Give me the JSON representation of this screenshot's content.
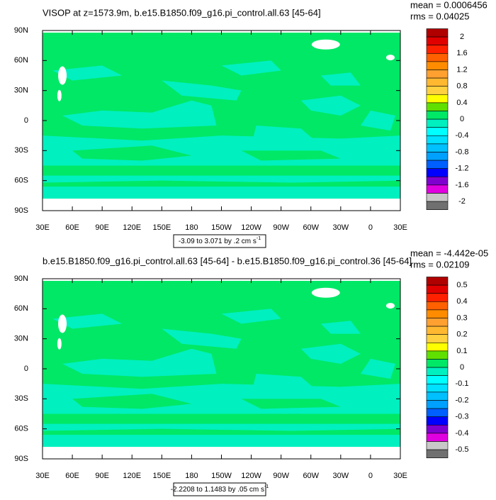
{
  "panels": [
    {
      "title": "VISOP at z=1573.9m, b.e15.B1850.f09_g16.pi_control.all.63 [45-64]",
      "mean": "mean = 0.0006456",
      "rms": "rms = 0.04025",
      "range_note": "-3.09 to 3.071 by .2 cm s",
      "range_unit_exponent": "-1",
      "colorbar_labels": [
        "2",
        "1.6",
        "1.2",
        "0.8",
        "0.4",
        "0",
        "-0.4",
        "-0.8",
        "-1.2",
        "-1.6",
        "-2"
      ]
    },
    {
      "title": "b.e15.B1850.f09_g16.pi_control.all.63 [45-64] - b.e15.B1850.f09_g16.pi_control.36 [45-64]",
      "mean": "mean = -4.442e-05",
      "rms": "rms = 0.02109",
      "range_note": "-2.2208 to 1.1483 by .05 cm s",
      "range_unit_exponent": "-1",
      "colorbar_labels": [
        "0.5",
        "0.4",
        "0.3",
        "0.2",
        "0.1",
        "0",
        "-0.1",
        "-0.2",
        "-0.3",
        "-0.4",
        "-0.5"
      ]
    }
  ],
  "lat_labels": [
    "90N",
    "60N",
    "30N",
    "0",
    "30S",
    "60S",
    "90S"
  ],
  "lon_labels": [
    "30E",
    "60E",
    "90E",
    "120E",
    "150E",
    "180",
    "150W",
    "120W",
    "90W",
    "60W",
    "30W",
    "0",
    "30E"
  ],
  "colorbar_colors": [
    "#b00000",
    "#e00000",
    "#ff2000",
    "#ff6000",
    "#ff8c00",
    "#ffa030",
    "#ffb830",
    "#ffd040",
    "#ffff00",
    "#60e000",
    "#00e866",
    "#00f0c0",
    "#00ffff",
    "#00e0ff",
    "#00c0ff",
    "#00a0ff",
    "#0060ff",
    "#0000ff",
    "#8000d0",
    "#e000e0",
    "#c8c8c8",
    "#707070"
  ]
}
